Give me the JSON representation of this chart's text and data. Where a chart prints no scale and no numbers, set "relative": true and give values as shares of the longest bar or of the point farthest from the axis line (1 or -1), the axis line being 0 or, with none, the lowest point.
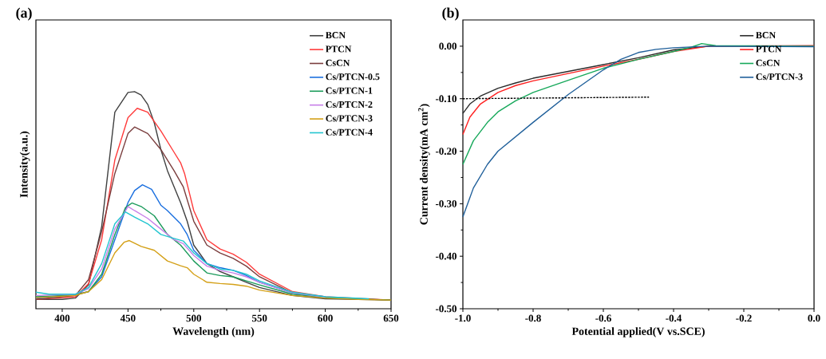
{
  "chart_data": [
    {
      "type": "line",
      "title": "(a)",
      "xlabel": "Wavelength (nm)",
      "ylabel": "Intensity(a.u.)",
      "relative": true,
      "tick_labels": "x",
      "legend": "top right",
      "xlim": [
        380,
        650
      ],
      "xticks": [
        400,
        450,
        500,
        550,
        600,
        650
      ],
      "series": [
        {
          "name": "BCN",
          "color": "#404040",
          "x": [
            380,
            400,
            410,
            420,
            430,
            440,
            450,
            455,
            460,
            465,
            470,
            475,
            480,
            490,
            495,
            500,
            510,
            520,
            530,
            540,
            550,
            575,
            600,
            650
          ],
          "values": [
            0.043,
            0.043,
            0.049,
            0.11,
            0.379,
            0.905,
            0.996,
            1.0,
            0.984,
            0.941,
            0.856,
            0.733,
            0.636,
            0.489,
            0.403,
            0.293,
            0.208,
            0.171,
            0.147,
            0.122,
            0.098,
            0.061,
            0.046,
            0.04
          ]
        },
        {
          "name": "PTCN",
          "color": "#ff3b3b",
          "x": [
            380,
            410,
            420,
            430,
            440,
            450,
            457,
            465,
            475,
            485,
            490,
            493,
            500,
            510,
            520,
            530,
            540,
            550,
            575,
            600,
            650
          ],
          "values": [
            0.043,
            0.055,
            0.116,
            0.318,
            0.685,
            0.88,
            0.923,
            0.905,
            0.819,
            0.721,
            0.672,
            0.623,
            0.452,
            0.318,
            0.275,
            0.251,
            0.214,
            0.159,
            0.079,
            0.055,
            0.04
          ]
        },
        {
          "name": "CsCN",
          "color": "#7a3e3e",
          "x": [
            380,
            410,
            420,
            430,
            440,
            450,
            455,
            465,
            475,
            485,
            492,
            500,
            510,
            520,
            530,
            540,
            550,
            575,
            600,
            650
          ],
          "values": [
            0.043,
            0.061,
            0.134,
            0.355,
            0.623,
            0.807,
            0.837,
            0.807,
            0.733,
            0.636,
            0.562,
            0.403,
            0.293,
            0.257,
            0.232,
            0.196,
            0.147,
            0.073,
            0.051,
            0.04
          ]
        },
        {
          "name": "Cs/PTCN-0.5",
          "color": "#1a6fdf",
          "x": [
            380,
            410,
            420,
            430,
            440,
            450,
            455,
            461,
            468,
            475,
            480,
            490,
            495,
            500,
            510,
            520,
            530,
            540,
            550,
            575,
            600
          ],
          "values": [
            0.049,
            0.064,
            0.079,
            0.147,
            0.318,
            0.489,
            0.544,
            0.571,
            0.55,
            0.477,
            0.452,
            0.391,
            0.342,
            0.269,
            0.208,
            0.189,
            0.177,
            0.153,
            0.122,
            0.073,
            0.055
          ]
        },
        {
          "name": "Cs/PTCN-1",
          "color": "#1a9a5a",
          "x": [
            380,
            410,
            420,
            430,
            440,
            448,
            453,
            460,
            470,
            480,
            490,
            500,
            510,
            520,
            530,
            540,
            550,
            575,
            600,
            650
          ],
          "values": [
            0.055,
            0.064,
            0.079,
            0.159,
            0.342,
            0.465,
            0.487,
            0.471,
            0.428,
            0.342,
            0.293,
            0.22,
            0.165,
            0.153,
            0.147,
            0.128,
            0.11,
            0.067,
            0.051,
            0.04
          ]
        },
        {
          "name": "Cs/PTCN-2",
          "color": "#c77fe8",
          "x": [
            380,
            410,
            420,
            430,
            440,
            450,
            455,
            465,
            475,
            485,
            492,
            500,
            510,
            520,
            530,
            540,
            550,
            575,
            600
          ],
          "values": [
            0.061,
            0.067,
            0.092,
            0.183,
            0.367,
            0.471,
            0.452,
            0.416,
            0.367,
            0.318,
            0.3,
            0.245,
            0.196,
            0.177,
            0.165,
            0.147,
            0.122,
            0.073,
            0.053
          ]
        },
        {
          "name": "Cs/PTCN-3",
          "color": "#d4a017",
          "x": [
            380,
            410,
            420,
            430,
            440,
            447,
            451,
            460,
            470,
            480,
            490,
            495,
            500,
            510,
            520,
            530,
            540,
            550,
            575,
            600,
            625,
            650
          ],
          "values": [
            0.051,
            0.061,
            0.079,
            0.134,
            0.257,
            0.306,
            0.314,
            0.287,
            0.269,
            0.22,
            0.198,
            0.189,
            0.159,
            0.122,
            0.116,
            0.112,
            0.104,
            0.086,
            0.061,
            0.049,
            0.043,
            0.04
          ]
        },
        {
          "name": "Cs/PTCN-4",
          "color": "#22c5d0",
          "x": [
            380,
            390,
            410,
            420,
            430,
            440,
            448,
            455,
            465,
            475,
            485,
            492,
            500,
            510,
            520,
            530,
            540,
            550,
            575,
            600,
            633
          ],
          "values": [
            0.076,
            0.067,
            0.067,
            0.098,
            0.208,
            0.391,
            0.446,
            0.422,
            0.391,
            0.342,
            0.324,
            0.312,
            0.257,
            0.208,
            0.183,
            0.177,
            0.159,
            0.128,
            0.076,
            0.055,
            0.046
          ]
        }
      ]
    },
    {
      "type": "line",
      "title": "(b)",
      "xlabel": "Potential applied(V vs.SCE)",
      "ylabel": "Current density(mA cm$^{2}$)",
      "legend": "top right",
      "xlim": [
        -1.0,
        0.0
      ],
      "xticks": [
        {
          "value": -1.0,
          "label": "-1.0"
        },
        {
          "value": -0.8,
          "label": "-0.8"
        },
        {
          "value": -0.6,
          "label": "-0.6"
        },
        {
          "value": -0.4,
          "label": "-0.4"
        },
        {
          "value": -0.2,
          "label": "-0.2"
        },
        {
          "value": 0.0,
          "label": "0.0"
        }
      ],
      "ylim": [
        -0.5,
        0.05
      ],
      "yticks": [
        {
          "value": -0.5,
          "label": "-0.50"
        },
        {
          "value": -0.4,
          "label": "-0.40"
        },
        {
          "value": -0.3,
          "label": "-0.30"
        },
        {
          "value": -0.2,
          "label": "-0.20"
        },
        {
          "value": -0.1,
          "label": "-0.10"
        },
        {
          "value": 0.0,
          "label": "0.00"
        }
      ],
      "series": [
        {
          "name": "BCN",
          "color": "#2b2b2b",
          "x": [
            -1.0,
            -0.98,
            -0.95,
            -0.9,
            -0.85,
            -0.8,
            -0.7,
            -0.6,
            -0.5,
            -0.4,
            -0.3,
            0.0
          ],
          "values": [
            -0.128,
            -0.11,
            -0.095,
            -0.08,
            -0.07,
            -0.061,
            -0.048,
            -0.035,
            -0.022,
            -0.007,
            0.0,
            0.0
          ]
        },
        {
          "name": "PTCN",
          "color": "#ff2020",
          "x": [
            -1.0,
            -0.98,
            -0.95,
            -0.9,
            -0.85,
            -0.8,
            -0.7,
            -0.6,
            -0.5,
            -0.4,
            -0.3,
            0.0
          ],
          "values": [
            -0.168,
            -0.135,
            -0.11,
            -0.088,
            -0.075,
            -0.066,
            -0.052,
            -0.038,
            -0.025,
            -0.01,
            0.0,
            0.001
          ]
        },
        {
          "name": "CsCN",
          "color": "#16a85a",
          "x": [
            -1.0,
            -0.97,
            -0.93,
            -0.9,
            -0.85,
            -0.8,
            -0.7,
            -0.6,
            -0.5,
            -0.4,
            -0.35,
            -0.32,
            -0.28,
            0.0
          ],
          "values": [
            -0.225,
            -0.18,
            -0.145,
            -0.125,
            -0.104,
            -0.088,
            -0.065,
            -0.042,
            -0.025,
            -0.01,
            -0.002,
            0.005,
            0.001,
            0.0
          ]
        },
        {
          "name": "Cs/PTCN-3",
          "color": "#1f5f9a",
          "x": [
            -1.0,
            -0.97,
            -0.93,
            -0.9,
            -0.8,
            -0.7,
            -0.6,
            -0.55,
            -0.5,
            -0.45,
            -0.4,
            -0.3,
            0.0
          ],
          "values": [
            -0.325,
            -0.27,
            -0.225,
            -0.2,
            -0.145,
            -0.092,
            -0.045,
            -0.025,
            -0.012,
            -0.006,
            -0.003,
            0.0,
            -0.001
          ]
        },
        {
          "color": "#000000",
          "line_style": "dashed",
          "x": [
            -1.0,
            -0.47
          ],
          "values": [
            -0.1,
            -0.097
          ]
        }
      ]
    }
  ]
}
